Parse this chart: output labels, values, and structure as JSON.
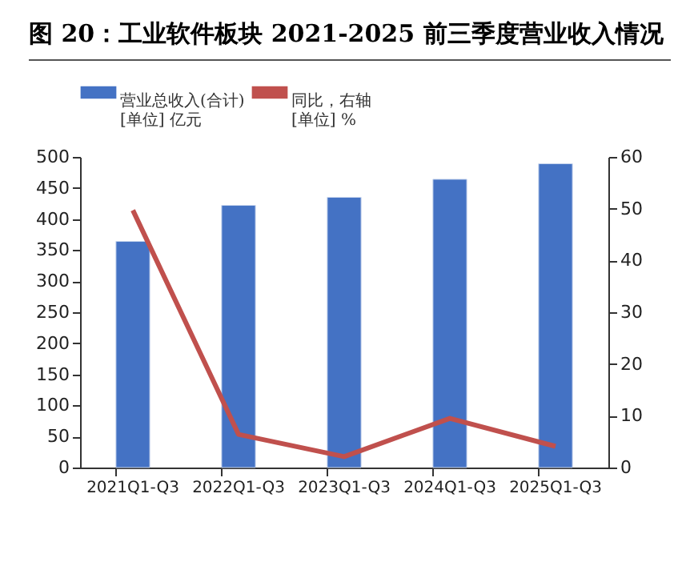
{
  "chart_data": {
    "type": "bar",
    "title": "图 20：工业软件板块 2021-2025 前三季度营业收入情况",
    "categories": [
      "2021Q1-Q3",
      "2022Q1-Q3",
      "2023Q1-Q3",
      "2024Q1-Q3",
      "2025Q1-Q3"
    ],
    "series": [
      {
        "name": "营业总收入(合计)\n[单位] 亿元",
        "color": "#4472c4",
        "values": [
          364,
          422,
          435,
          464,
          489
        ]
      },
      {
        "name": "同比，右轴\n[单位] %",
        "color": "#c0504d",
        "type": "line",
        "axis": "y2",
        "values": [
          49.7,
          6.4,
          2.1,
          9.5,
          4.1
        ]
      }
    ],
    "ylim": [
      0,
      500
    ],
    "yticks": [
      0,
      50,
      100,
      150,
      200,
      250,
      300,
      350,
      400,
      450,
      500
    ],
    "y2lim": [
      0,
      60
    ],
    "y2ticks": [
      0,
      10,
      20,
      30,
      40,
      50,
      60
    ],
    "grid": false,
    "legend": "top",
    "marker": "none"
  }
}
